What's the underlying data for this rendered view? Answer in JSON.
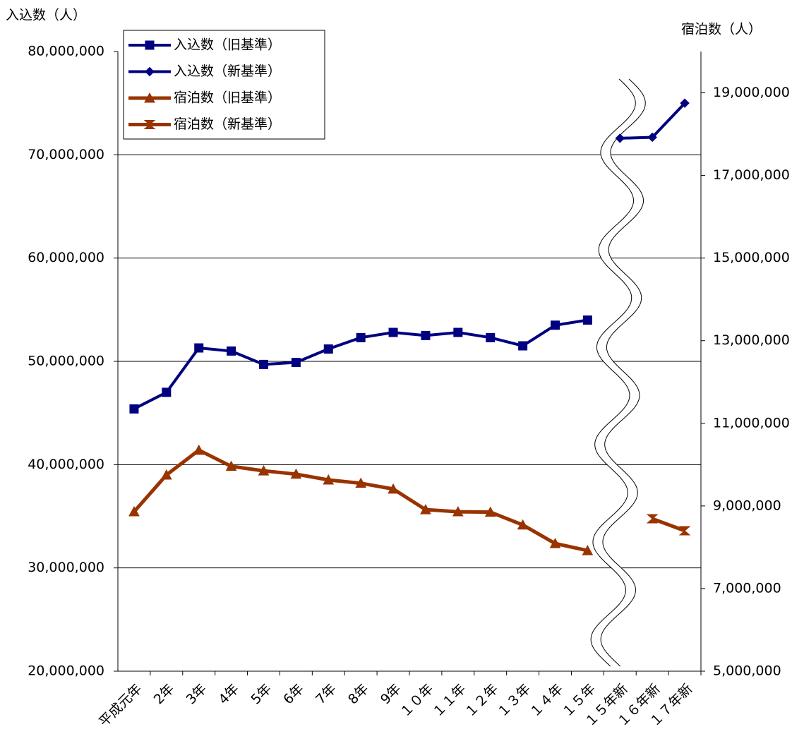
{
  "chart_data": {
    "type": "line",
    "y_label": "入込数（人）",
    "y2_label": "宿泊数（人）",
    "categories": [
      "平成元年",
      "2年",
      "3年",
      "4年",
      "5年",
      "6年",
      "7年",
      "8年",
      "9年",
      "１０年",
      "１１年",
      "１２年",
      "１３年",
      "１４年",
      "１５年",
      "１５年新",
      "１６年新",
      "１７年新"
    ],
    "series": [
      {
        "name": "入込数（旧基準）",
        "color": "#000080",
        "marker": "square",
        "values": [
          45400000,
          47000000,
          51300000,
          51000000,
          49700000,
          49900000,
          51200000,
          52300000,
          52800000,
          52500000,
          52800000,
          52300000,
          51500000,
          53500000,
          54000000,
          null,
          null,
          null
        ]
      },
      {
        "name": "入込数（新基準）",
        "color": "#000080",
        "marker": "diamond",
        "values": [
          null,
          null,
          null,
          null,
          null,
          null,
          null,
          null,
          null,
          null,
          null,
          null,
          null,
          null,
          null,
          71600000,
          71700000,
          75000000
        ]
      },
      {
        "name": "宿泊数（旧基準）",
        "color": "#993300",
        "marker": "triangle",
        "axis": "y2",
        "values": [
          8860000,
          9750000,
          10350000,
          9960000,
          9850000,
          9770000,
          9630000,
          9550000,
          9410000,
          8910000,
          8860000,
          8850000,
          8540000,
          8090000,
          7920000,
          null,
          null,
          null
        ]
      },
      {
        "name": "宿泊数（新基準）",
        "color": "#993300",
        "marker": "bowtie",
        "axis": "y2",
        "values": [
          null,
          null,
          null,
          null,
          null,
          null,
          null,
          null,
          null,
          null,
          null,
          null,
          null,
          null,
          null,
          null,
          8690000,
          8400000
        ]
      }
    ],
    "ylim": [
      20000000,
      80000000
    ],
    "yticks": [
      {
        "value": 20000000,
        "label": "20,000,000"
      },
      {
        "value": 30000000,
        "label": "30,000,000"
      },
      {
        "value": 40000000,
        "label": "40,000,000"
      },
      {
        "value": 50000000,
        "label": "50,000,000"
      },
      {
        "value": 60000000,
        "label": "60,000,000"
      },
      {
        "value": 70000000,
        "label": "70,000,000"
      },
      {
        "value": 80000000,
        "label": "80,000,000"
      }
    ],
    "y2lim": [
      5000000,
      20000000
    ],
    "y2ticks": [
      {
        "value": 5000000,
        "label": "5,000,000"
      },
      {
        "value": 7000000,
        "label": "7,000,000"
      },
      {
        "value": 9000000,
        "label": "9,000,000"
      },
      {
        "value": 11000000,
        "label": "11,000,000"
      },
      {
        "value": 13000000,
        "label": "13,000,000"
      },
      {
        "value": 15000000,
        "label": "15,000,000"
      },
      {
        "value": 17000000,
        "label": "17,000,000"
      },
      {
        "value": 19000000,
        "label": "19,000,000"
      }
    ],
    "grid": true,
    "legend": "upper left"
  }
}
